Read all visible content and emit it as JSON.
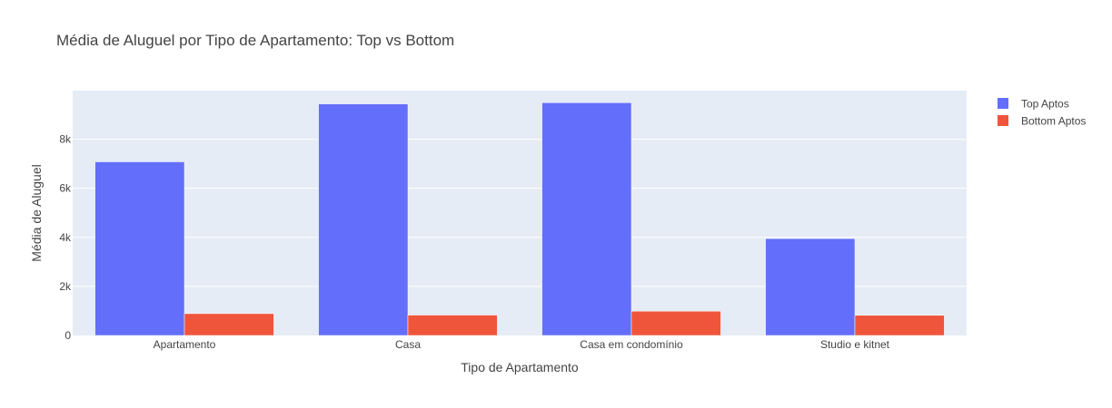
{
  "chart_data": {
    "type": "bar",
    "title": "Média de Aluguel por Tipo de Apartamento: Top vs Bottom",
    "xlabel": "Tipo de Apartamento",
    "ylabel": "Média de Aluguel",
    "categories": [
      "Apartamento",
      "Casa",
      "Casa em condomínio",
      "Studio e kitnet"
    ],
    "series": [
      {
        "name": "Top Aptos",
        "color": "#636efa",
        "values": [
          7080,
          9440,
          9490,
          3950
        ]
      },
      {
        "name": "Bottom Aptos",
        "color": "#ef553b",
        "values": [
          890,
          830,
          990,
          820
        ]
      }
    ],
    "ylim": [
      0,
      9980
    ],
    "yticks": [
      0,
      2000,
      4000,
      6000,
      8000
    ],
    "ytick_labels": [
      "0",
      "2k",
      "4k",
      "6k",
      "8k"
    ],
    "grid": true,
    "legend_position": "top-right",
    "plot_background": "#e5ecf6"
  }
}
